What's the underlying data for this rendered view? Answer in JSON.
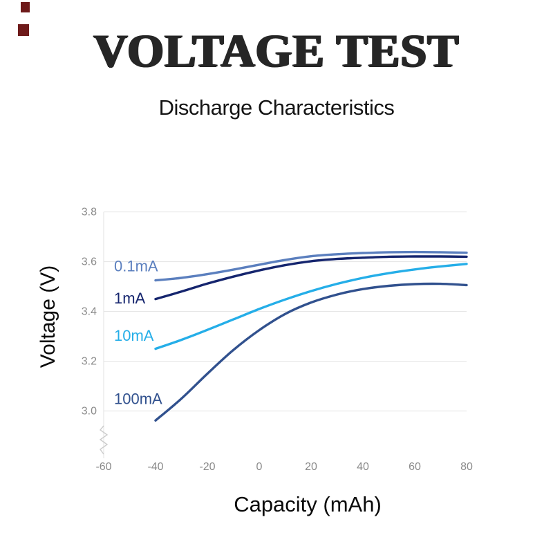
{
  "header": {
    "title": "VOLTAGE TEST",
    "subtitle": "Discharge Characteristics"
  },
  "decor": {
    "marker_color": "#6e1a1a"
  },
  "chart_data": {
    "type": "line",
    "title": "Discharge Characteristics",
    "xlabel": "Capacity (mAh)",
    "ylabel": "Voltage (V)",
    "xlim": [
      -60,
      80
    ],
    "ylim": [
      2.81,
      3.81
    ],
    "xticks": [
      -60,
      -40,
      -20,
      0,
      20,
      40,
      60,
      80
    ],
    "yticks": [
      3.0,
      3.2,
      3.4,
      3.6,
      3.8
    ],
    "grid": "horizontal-only",
    "gridline_color": "#e2e2e2",
    "tick_label_color": "#8a8a8a",
    "axis_break_bottom_left": true,
    "legend_position": "inline-left-labels",
    "x": [
      -40,
      -30,
      -20,
      -10,
      0,
      10,
      20,
      30,
      40,
      50,
      60,
      70,
      80
    ],
    "series": [
      {
        "name": "0.1mA",
        "color": "#5b7fbe",
        "label_anchor": {
          "x": -56,
          "y": 3.562
        },
        "values": [
          3.525,
          3.535,
          3.55,
          3.568,
          3.588,
          3.607,
          3.622,
          3.63,
          3.635,
          3.638,
          3.639,
          3.638,
          3.636
        ]
      },
      {
        "name": "1mA",
        "color": "#15256e",
        "label_anchor": {
          "x": -56,
          "y": 3.432
        },
        "values": [
          3.45,
          3.48,
          3.512,
          3.54,
          3.565,
          3.586,
          3.602,
          3.611,
          3.616,
          3.62,
          3.621,
          3.621,
          3.62
        ]
      },
      {
        "name": "10mA",
        "color": "#25aee8",
        "label_anchor": {
          "x": -56,
          "y": 3.282
        },
        "values": [
          3.25,
          3.286,
          3.326,
          3.368,
          3.41,
          3.448,
          3.482,
          3.511,
          3.535,
          3.554,
          3.569,
          3.581,
          3.591
        ]
      },
      {
        "name": "100mA",
        "color": "#31518e",
        "label_anchor": {
          "x": -56,
          "y": 3.028
        },
        "values": [
          2.962,
          3.05,
          3.15,
          3.245,
          3.325,
          3.39,
          3.436,
          3.468,
          3.49,
          3.503,
          3.51,
          3.511,
          3.506
        ]
      }
    ]
  }
}
